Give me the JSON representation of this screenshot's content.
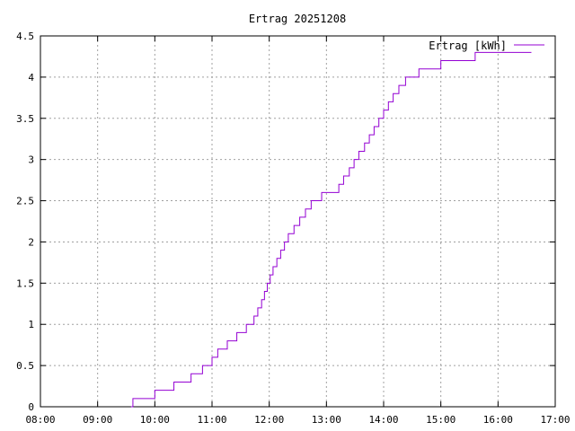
{
  "chart_data": {
    "type": "line",
    "title": "Ertrag 20251208",
    "xlabel": "",
    "ylabel": "",
    "x_ticks": [
      "08:00",
      "09:00",
      "10:00",
      "11:00",
      "12:00",
      "13:00",
      "14:00",
      "15:00",
      "16:00",
      "17:00"
    ],
    "y_ticks": [
      "0",
      "0.5",
      "1",
      "1.5",
      "2",
      "2.5",
      "3",
      "3.5",
      "4",
      "4.5"
    ],
    "xlim": [
      "08:00",
      "17:00"
    ],
    "ylim": [
      0,
      4.5
    ],
    "grid": true,
    "legend_position": "top-right",
    "step": true,
    "series": [
      {
        "name": "Ertrag [kWh]",
        "color": "#9400d3",
        "x": [
          "09:35",
          "09:37",
          "10:00",
          "10:20",
          "10:38",
          "10:50",
          "11:00",
          "11:06",
          "11:16",
          "11:26",
          "11:36",
          "11:44",
          "11:48",
          "11:52",
          "11:55",
          "11:58",
          "12:01",
          "12:04",
          "12:08",
          "12:12",
          "12:16",
          "12:20",
          "12:26",
          "12:32",
          "12:38",
          "12:44",
          "12:50",
          "12:55",
          "13:05",
          "13:13",
          "13:18",
          "13:24",
          "13:29",
          "13:34",
          "13:40",
          "13:45",
          "13:50",
          "13:55",
          "14:00",
          "14:05",
          "14:10",
          "14:16",
          "14:23",
          "14:30",
          "14:37",
          "14:44",
          "15:00",
          "15:15",
          "15:36",
          "16:00",
          "16:35"
        ],
        "y": [
          0,
          0.1,
          0.2,
          0.3,
          0.4,
          0.5,
          0.6,
          0.7,
          0.8,
          0.9,
          1.0,
          1.1,
          1.2,
          1.3,
          1.4,
          1.5,
          1.6,
          1.7,
          1.8,
          1.9,
          2.0,
          2.1,
          2.2,
          2.3,
          2.4,
          2.5,
          2.5,
          2.6,
          2.6,
          2.7,
          2.8,
          2.9,
          3.0,
          3.1,
          3.2,
          3.3,
          3.4,
          3.5,
          3.6,
          3.7,
          3.8,
          3.9,
          4.0,
          4.0,
          4.1,
          4.1,
          4.2,
          4.2,
          4.3,
          4.3,
          4.3
        ]
      }
    ]
  }
}
